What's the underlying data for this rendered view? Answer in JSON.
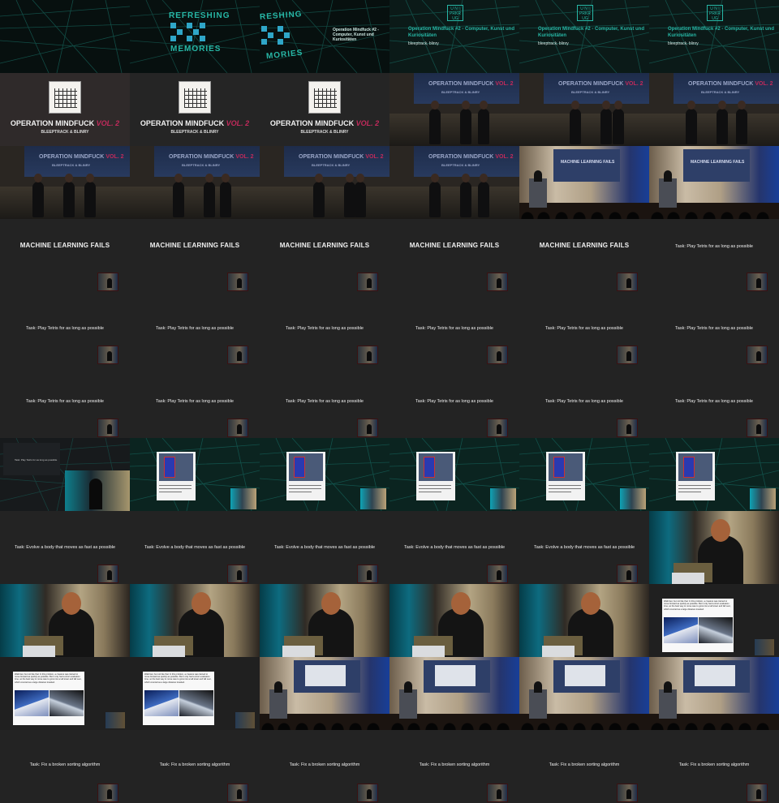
{
  "title_card": {
    "line1": "REFRESHING",
    "line2": "MEMORIES",
    "line1_partial": "RESHING",
    "line2_partial": "MORIES",
    "event_line": "Operation Mindfuck #2 - Computer, Kunst und Kuriositäten"
  },
  "event_card": {
    "badge": "U N I\nPRKR\nUG",
    "title": "Operation Mindfuck #2 - Computer, Kunst und Kuriositäten",
    "authors": "bleeptrack, blinry"
  },
  "talk_card": {
    "title": "OPERATION MINDFUCK",
    "vol": "VOL. 2",
    "speakers": "BLEEPTRACK & BLINRY"
  },
  "stage": {
    "screen_title": "OPERATION MINDFUCK",
    "vol": "VOL. 2",
    "screen_sub": "BLEEPTRACK & BLINRY"
  },
  "hall": {
    "screen_text": "MACHINE LEARNING FAILS"
  },
  "slides": {
    "ml_fails": "MACHINE LEARNING FAILS",
    "tetris": "Task: Play Tetris for as long as possible",
    "body": "Task: Evolve a body that moves as fast as possible",
    "sorting": "Task: Fix a broken sorting algorithm"
  },
  "robot_card": {
    "text": "Walk fast, but not like that: In this problem, a creature was trained to move forward as quickly as possible. But it only had a short evaluation time, so the best way to move was to grow into a tall tower and fall over, which counted as a large distance traveled."
  },
  "colors": {
    "teal": "#27b7a6",
    "magenta": "#c12a5b",
    "slide_bg": "#232323"
  },
  "layout": {
    "rows": [
      [
        "title_corner",
        "title_refreshing",
        "title_refreshing_partial",
        "event",
        "event",
        "event"
      ],
      [
        "om_card",
        "om_card_dark",
        "om_card_dark",
        "stage",
        "stage",
        "stage"
      ],
      [
        "stage",
        "stage",
        "stage",
        "stage",
        "hall",
        "hall"
      ],
      [
        "ml_fails",
        "ml_fails",
        "ml_fails",
        "ml_fails",
        "ml_fails",
        "tetris_task_top"
      ],
      [
        "tetris_task",
        "tetris_task",
        "tetris_task",
        "tetris_task",
        "tetris_task",
        "tetris_task"
      ],
      [
        "tetris_task",
        "tetris_task",
        "tetris_task",
        "tetris_task",
        "tetris_task",
        "tetris_task"
      ],
      [
        "glitch",
        "tetris_game",
        "tetris_game",
        "tetris_game",
        "tetris_game",
        "tetris_game"
      ],
      [
        "body_task",
        "body_task",
        "body_task",
        "body_task",
        "body_task",
        "closeup"
      ],
      [
        "closeup",
        "closeup",
        "closeup",
        "closeup",
        "closeup",
        "robot"
      ],
      [
        "robot",
        "robot",
        "hall_small",
        "hall_small",
        "hall_small",
        "hall_small"
      ],
      [
        "sorting_task",
        "sorting_task",
        "sorting_task",
        "sorting_task",
        "sorting_task",
        "sorting_task"
      ]
    ]
  }
}
